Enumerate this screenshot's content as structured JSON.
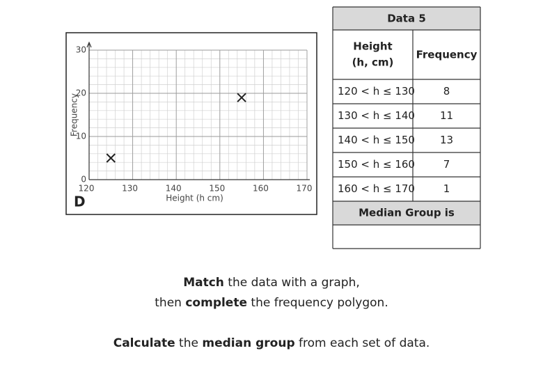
{
  "chart_data": {
    "type": "scatter",
    "label": "D",
    "xlabel": "Height (h cm)",
    "ylabel": "Frequency",
    "x": [
      125,
      155
    ],
    "values": [
      5,
      19
    ],
    "color": "#222222",
    "xlim": [
      120,
      170
    ],
    "xticks": [
      120,
      130,
      140,
      150,
      160,
      170
    ],
    "ylim": [
      0,
      30
    ],
    "yticks": [
      0,
      10,
      20,
      30
    ],
    "grid": true
  },
  "table": {
    "title": "Data 5",
    "height_header": [
      "Height",
      "(h, cm)"
    ],
    "frequency_header": "Frequency",
    "rows": [
      [
        "120 < h ≤ 130",
        "8"
      ],
      [
        "130 < h ≤ 140",
        "11"
      ],
      [
        "140 < h ≤ 150",
        "13"
      ],
      [
        "150 < h ≤ 160",
        "7"
      ],
      [
        "160 < h ≤ 170",
        "1"
      ]
    ],
    "footer": "Median Group is"
  },
  "instructions": [
    [
      {
        "text": "Match",
        "bold": true
      },
      {
        "text": " the data with a graph,",
        "bold": false
      }
    ],
    [
      {
        "text": "then ",
        "bold": false
      },
      {
        "text": "complete",
        "bold": true
      },
      {
        "text": " the frequency polygon.",
        "bold": false
      }
    ],
    [
      {
        "text": "Calculate",
        "bold": true
      },
      {
        "text": " the ",
        "bold": false
      },
      {
        "text": "median group",
        "bold": true
      },
      {
        "text": " from each set of data.",
        "bold": false
      }
    ]
  ]
}
